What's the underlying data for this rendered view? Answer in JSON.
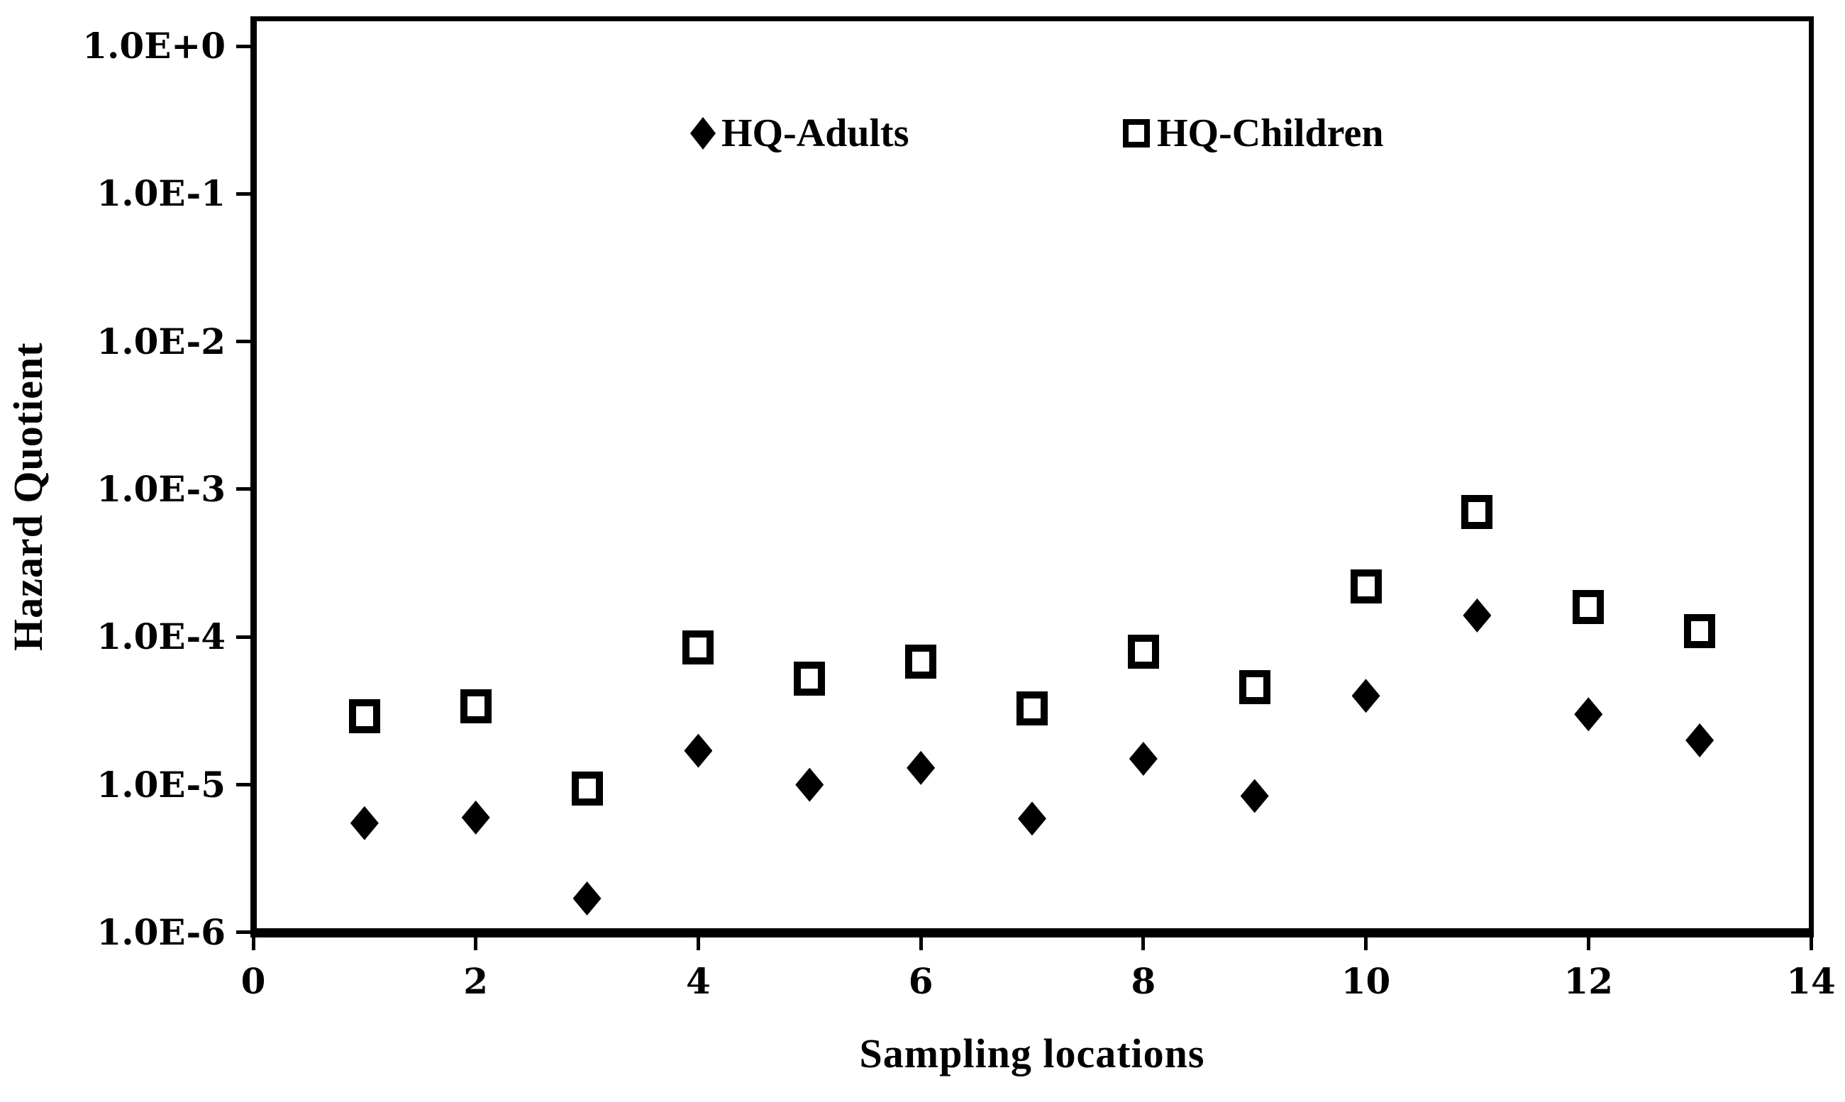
{
  "window": {
    "background": "#ffffff"
  },
  "colors": {
    "ink": "#000000",
    "paper": "#ffffff"
  },
  "axis": {
    "y_title": "Hazard Quotient",
    "x_title": "Sampling locations",
    "y_ticks": [
      {
        "label": "1.0E+0",
        "value": 1
      },
      {
        "label": "1.0E-1",
        "value": 0.1
      },
      {
        "label": "1.0E-2",
        "value": 0.01
      },
      {
        "label": "1.0E-3",
        "value": 0.001
      },
      {
        "label": "1.0E-4",
        "value": 0.0001
      },
      {
        "label": "1.0E-5",
        "value": 1e-05
      },
      {
        "label": "1.0E-6",
        "value": 1e-06
      }
    ],
    "x_ticks": [
      0,
      2,
      4,
      6,
      8,
      10,
      12,
      14
    ]
  },
  "legend": {
    "items": [
      {
        "label": "HQ-Adults",
        "marker": "filled-diamond"
      },
      {
        "label": "HQ-Children",
        "marker": "open-square"
      }
    ]
  },
  "chart_data": {
    "type": "scatter",
    "x_values": [
      1,
      2,
      3,
      4,
      5,
      6,
      7,
      8,
      9,
      10,
      11,
      12,
      13
    ],
    "series": [
      {
        "name": "HQ-Adults",
        "marker": "filled-diamond",
        "values": [
          5.5e-06,
          6e-06,
          1.7e-06,
          1.7e-05,
          1e-05,
          1.3e-05,
          5.9e-06,
          1.5e-05,
          8.4e-06,
          4e-05,
          0.00014,
          3e-05,
          2e-05
        ]
      },
      {
        "name": "HQ-Children",
        "marker": "open-square",
        "values": [
          2.9e-05,
          3.4e-05,
          9.4e-06,
          8.5e-05,
          5.2e-05,
          6.8e-05,
          3.3e-05,
          8e-05,
          4.6e-05,
          0.00022,
          0.0007,
          0.00016,
          0.00011
        ]
      }
    ],
    "title": "",
    "xlabel": "Sampling locations",
    "ylabel": "Hazard Quotient",
    "x_scale": "linear",
    "y_scale": "log",
    "xlim": [
      0,
      14
    ],
    "ylim": [
      1e-06,
      1.5
    ],
    "grid": false,
    "legend_position": "top-inside"
  }
}
